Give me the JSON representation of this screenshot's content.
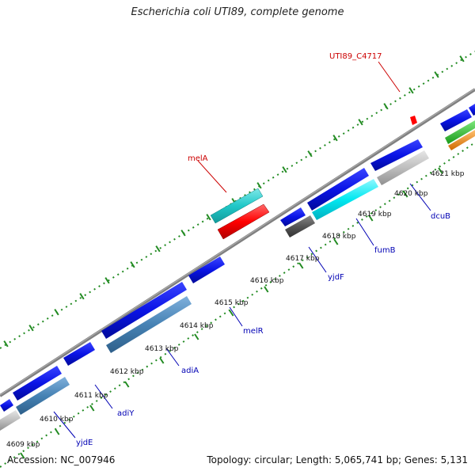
{
  "title": "Escherichia coli UTI89, complete genome",
  "accession": "Accession: NC_007946",
  "summary": "Topology: circular; Length: 5,065,741 bp; Genes: 5,131",
  "ticks": [
    "4609 kbp",
    "4610 kbp",
    "4611 kbp",
    "4612 kbp",
    "4613 kbp",
    "4614 kbp",
    "4615 kbp",
    "4616 kbp",
    "4617 kbp",
    "4618 kbp",
    "4619 kbp",
    "4620 kbp",
    "4621 kbp"
  ],
  "genes": {
    "yjdE": "yjdE",
    "adiY": "adiY",
    "adiA": "adiA",
    "melR": "melR",
    "yjdF": "yjdF",
    "fumB": "fumB",
    "dcuB": "dcuB",
    "melA": "melA",
    "utiC4717": "UTI89_C4717"
  },
  "colors": {
    "cds_blue": "#0a14e6",
    "steel_blue": "#4682b4",
    "cyan": "#00e0e6",
    "teal": "#20c8c8",
    "red": "#ff0000",
    "gray": "#bebebe",
    "dark_gray": "#555555",
    "green": "#22bb22",
    "orange": "#ff8c00",
    "backbone": "#7f7f7f",
    "dots": "#228b22",
    "label_blue": "#0000b4",
    "label_red": "#cc0000"
  }
}
